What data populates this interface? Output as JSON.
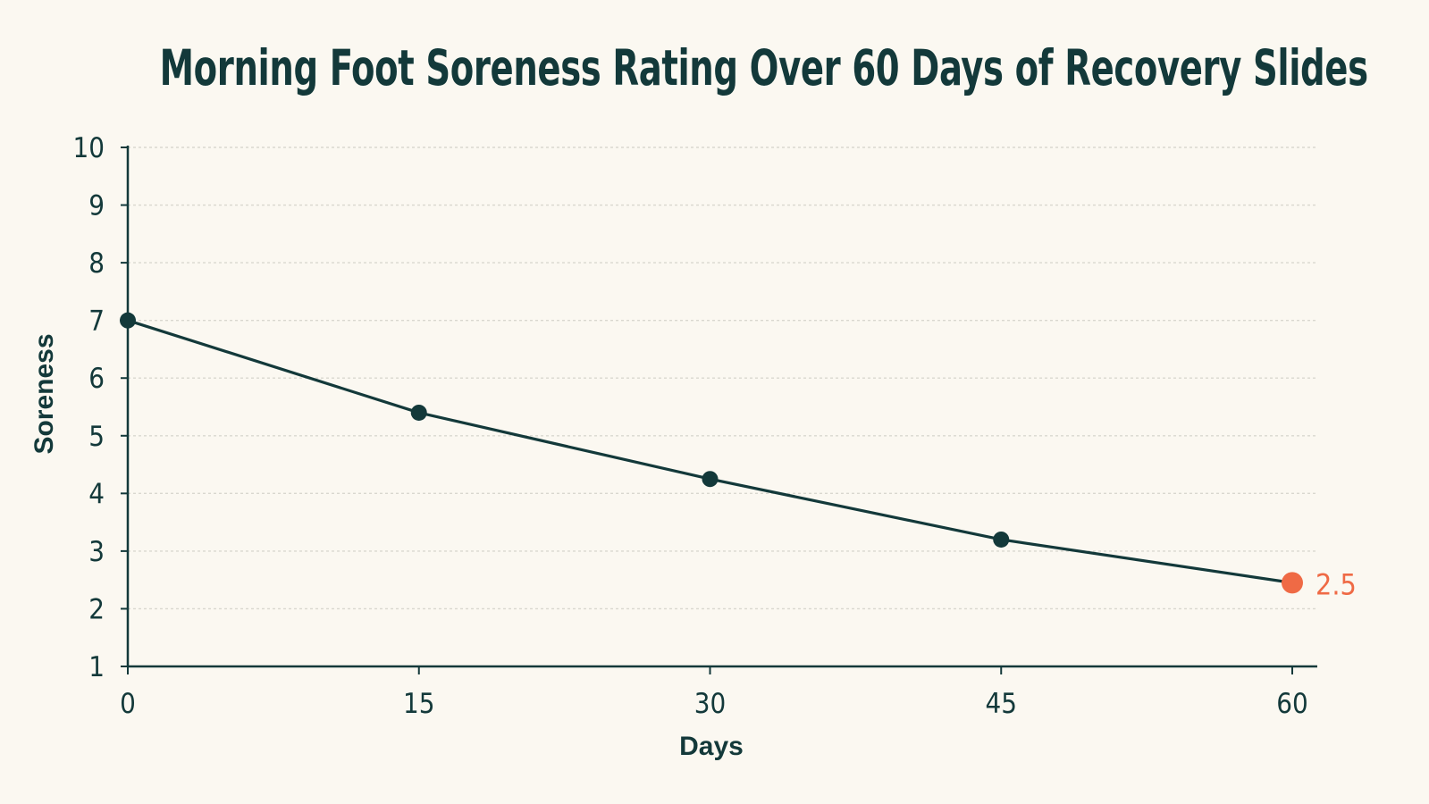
{
  "chart_data": {
    "type": "line",
    "title": "Morning Foot Soreness Rating Over 60 Days of Recovery Slides",
    "xlabel": "Days",
    "ylabel": "Soreness",
    "x": [
      0,
      15,
      30,
      45,
      60
    ],
    "series": [
      {
        "values": [
          7.0,
          5.4,
          4.25,
          3.2,
          2.45
        ]
      }
    ],
    "xlim": [
      0,
      60
    ],
    "ylim": [
      1,
      10
    ],
    "x_ticks": [
      0,
      15,
      30,
      45,
      60
    ],
    "y_ticks": [
      1,
      2,
      3,
      4,
      5,
      6,
      7,
      8,
      9,
      10
    ],
    "grid": "horizontal-dotted",
    "annotations": [
      {
        "x": 60,
        "y": 2.45,
        "text": "2.5"
      }
    ]
  },
  "colors": {
    "background": "#fbf8f1",
    "line": "#13393a",
    "highlight": "#ef6a45",
    "grid": "#d9d7cf"
  }
}
